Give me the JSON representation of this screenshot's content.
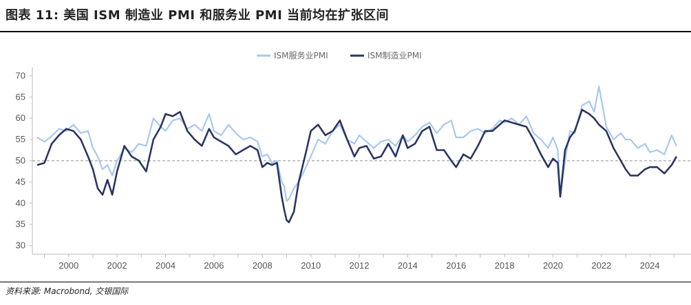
{
  "title": "图表 11: 美国 ISM 制造业 PMI 和服务业 PMI 当前均在扩张区间",
  "source": "资料来源: Macrobond, 交银国际",
  "chart_data": {
    "type": "line",
    "title": "图表 11: 美国 ISM 制造业 PMI 和服务业 PMI 当前均在扩张区间",
    "xlabel": "",
    "ylabel": "",
    "xlim": [
      1998.5,
      2025.7
    ],
    "ylim": [
      28,
      72
    ],
    "yticks": [
      30,
      35,
      40,
      45,
      50,
      55,
      60,
      65,
      70
    ],
    "xticks": [
      2000,
      2002,
      2004,
      2006,
      2008,
      2010,
      2012,
      2014,
      2016,
      2018,
      2020,
      2022,
      2024
    ],
    "reference_line": 50,
    "legend_position": "top-center",
    "series": [
      {
        "name": "ISM服务业PMI",
        "color": "#a7c8ef",
        "x": [
          1998.7,
          1999.0,
          1999.3,
          1999.6,
          1999.9,
          2000.2,
          2000.5,
          2000.8,
          2001.0,
          2001.2,
          2001.4,
          2001.6,
          2001.8,
          2002.0,
          2002.3,
          2002.6,
          2002.9,
          2003.2,
          2003.5,
          2003.8,
          2004.0,
          2004.3,
          2004.6,
          2004.9,
          2005.2,
          2005.5,
          2005.8,
          2006.0,
          2006.3,
          2006.6,
          2006.9,
          2007.2,
          2007.5,
          2007.8,
          2008.0,
          2008.2,
          2008.4,
          2008.6,
          2008.8,
          2008.9,
          2009.0,
          2009.1,
          2009.3,
          2009.5,
          2009.8,
          2010.0,
          2010.3,
          2010.6,
          2010.9,
          2011.2,
          2011.5,
          2011.8,
          2012.0,
          2012.3,
          2012.6,
          2012.9,
          2013.2,
          2013.5,
          2013.8,
          2014.0,
          2014.3,
          2014.6,
          2014.9,
          2015.2,
          2015.5,
          2015.8,
          2016.0,
          2016.3,
          2016.6,
          2016.9,
          2017.2,
          2017.5,
          2017.8,
          2018.0,
          2018.3,
          2018.6,
          2018.9,
          2019.2,
          2019.5,
          2019.8,
          2020.0,
          2020.2,
          2020.3,
          2020.5,
          2020.7,
          2020.9,
          2021.2,
          2021.5,
          2021.7,
          2021.9,
          2022.2,
          2022.5,
          2022.8,
          2023.0,
          2023.2,
          2023.5,
          2023.8,
          2024.0,
          2024.3,
          2024.6,
          2024.9,
          2025.1
        ],
        "values": [
          55.5,
          54.5,
          55.8,
          57.5,
          57.0,
          58.5,
          56.5,
          57.0,
          53.0,
          51.0,
          48.0,
          49.0,
          46.5,
          50.0,
          53.0,
          52.0,
          54.0,
          53.5,
          60.0,
          58.0,
          57.0,
          59.5,
          60.0,
          57.5,
          58.5,
          57.0,
          61.0,
          57.0,
          56.0,
          58.5,
          56.5,
          55.0,
          55.5,
          54.5,
          51.0,
          51.5,
          49.5,
          50.0,
          45.0,
          44.0,
          40.5,
          41.0,
          43.5,
          45.0,
          48.5,
          51.0,
          55.0,
          54.0,
          57.0,
          58.5,
          55.0,
          54.0,
          56.0,
          54.5,
          53.0,
          54.5,
          55.0,
          53.5,
          56.0,
          54.5,
          56.0,
          58.0,
          59.0,
          56.5,
          58.5,
          59.5,
          55.5,
          55.5,
          57.0,
          57.5,
          56.5,
          57.5,
          59.5,
          59.0,
          60.0,
          58.5,
          60.5,
          56.5,
          55.0,
          53.0,
          55.5,
          52.5,
          41.5,
          50.0,
          57.0,
          56.5,
          63.0,
          64.0,
          61.5,
          67.5,
          58.0,
          55.0,
          56.5,
          55.0,
          55.0,
          53.0,
          54.0,
          52.0,
          52.5,
          51.5,
          56.0,
          53.5
        ]
      },
      {
        "name": "ISM制造业PMI",
        "color": "#2b3463",
        "x": [
          1998.7,
          1999.0,
          1999.3,
          1999.6,
          1999.9,
          2000.2,
          2000.5,
          2000.8,
          2001.0,
          2001.2,
          2001.4,
          2001.6,
          2001.8,
          2002.0,
          2002.3,
          2002.6,
          2002.9,
          2003.2,
          2003.5,
          2003.8,
          2004.0,
          2004.3,
          2004.6,
          2004.9,
          2005.2,
          2005.5,
          2005.8,
          2006.0,
          2006.3,
          2006.6,
          2006.9,
          2007.2,
          2007.5,
          2007.8,
          2008.0,
          2008.2,
          2008.4,
          2008.6,
          2008.8,
          2008.9,
          2009.0,
          2009.1,
          2009.3,
          2009.5,
          2009.8,
          2010.0,
          2010.3,
          2010.6,
          2010.9,
          2011.2,
          2011.5,
          2011.8,
          2012.0,
          2012.3,
          2012.6,
          2012.9,
          2013.2,
          2013.5,
          2013.8,
          2014.0,
          2014.3,
          2014.6,
          2014.9,
          2015.2,
          2015.5,
          2015.8,
          2016.0,
          2016.3,
          2016.6,
          2016.9,
          2017.2,
          2017.5,
          2017.8,
          2018.0,
          2018.3,
          2018.6,
          2018.9,
          2019.2,
          2019.5,
          2019.8,
          2020.0,
          2020.2,
          2020.3,
          2020.5,
          2020.7,
          2020.9,
          2021.2,
          2021.5,
          2021.7,
          2021.9,
          2022.2,
          2022.5,
          2022.8,
          2023.0,
          2023.2,
          2023.5,
          2023.8,
          2024.0,
          2024.3,
          2024.6,
          2024.9,
          2025.1
        ],
        "values": [
          49.0,
          49.5,
          54.0,
          56.0,
          57.5,
          57.0,
          55.0,
          51.0,
          48.0,
          43.5,
          42.0,
          45.5,
          42.0,
          47.5,
          53.5,
          51.0,
          50.0,
          47.5,
          55.0,
          58.0,
          61.0,
          60.5,
          61.5,
          57.0,
          55.0,
          53.5,
          57.5,
          55.5,
          54.5,
          53.5,
          51.5,
          52.5,
          53.5,
          52.5,
          48.5,
          49.5,
          49.0,
          49.5,
          41.5,
          38.5,
          36.0,
          35.5,
          38.0,
          45.0,
          52.0,
          57.0,
          58.5,
          56.0,
          57.0,
          59.5,
          55.0,
          51.0,
          53.0,
          53.5,
          50.5,
          51.0,
          54.0,
          51.0,
          56.0,
          53.0,
          54.0,
          57.0,
          58.0,
          52.5,
          52.5,
          50.0,
          48.5,
          51.5,
          50.5,
          53.5,
          57.0,
          57.0,
          58.5,
          59.5,
          59.0,
          58.5,
          58.0,
          55.0,
          51.5,
          48.5,
          50.5,
          49.5,
          41.5,
          52.5,
          55.5,
          57.0,
          62.0,
          61.0,
          60.0,
          58.5,
          57.0,
          53.0,
          50.0,
          48.0,
          46.5,
          46.5,
          48.0,
          48.5,
          48.5,
          47.0,
          49.0,
          51.0
        ]
      }
    ]
  }
}
